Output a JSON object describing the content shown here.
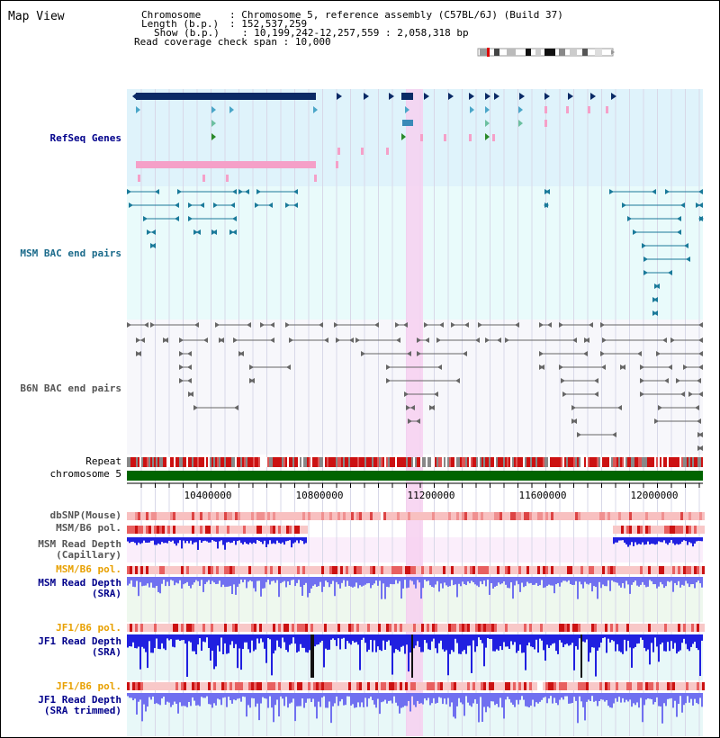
{
  "title": "Map View",
  "info": {
    "chromosome_label": "Chromosome",
    "chromosome_value": "Chromosome 5, reference assembly (C57BL/6J) (Build 37)",
    "length_label": "Length (b.p.)",
    "length_value": "152,537,259",
    "show_label": "Show (b.p.)",
    "show_value": "10,199,242-12,257,559 : 2,058,318 bp",
    "coverage_label": "Read coverage check span",
    "coverage_value": "10,000"
  },
  "tracks": {
    "refseq": "RefSeq Genes",
    "msm_bac": "MSM BAC end pairs",
    "b6n_bac": "B6N BAC end pairs",
    "repeat": "Repeat",
    "chromosome": "chromosome 5",
    "dbsnp": "dbSNP(Mouse)",
    "msm_b6_pol_1": "MSM/B6 pol.",
    "msm_read_depth_cap_1": "MSM Read Depth",
    "msm_read_depth_cap_2": "(Capillary)",
    "msm_b6_pol_2": "MSM/B6 pol.",
    "msm_read_depth_sra_1": "MSM Read Depth",
    "msm_read_depth_sra_2": "(SRA)",
    "jf1_b6_pol_1": "JF1/B6 pol.",
    "jf1_read_depth_sra_1": "JF1 Read Depth",
    "jf1_read_depth_sra_2": "(SRA)",
    "jf1_b6_pol_2": "JF1/B6 pol.",
    "jf1_read_depth_trim_1": "JF1 Read Depth",
    "jf1_read_depth_trim_2": "(SRA trimmed)"
  },
  "ruler": [
    "10400000",
    "10800000",
    "11200000",
    "11600000",
    "12000000"
  ],
  "colors": {
    "refseq_bg": "#dff3fb",
    "msm_bac_bg": "#e9fbfb",
    "b6n_bac_bg": "#f7f7fb",
    "highlight": "#f7d0f0",
    "gene_dark": "#0a2a66",
    "gene_pink": "#f5a0c8",
    "bac_teal": "#1a7a9a",
    "bac_gray": "#666666",
    "chrom_green": "#006400",
    "depth_blue": "#2020e0",
    "depth_light": "#7070f0",
    "label_blue": "#00008b",
    "label_orange": "#e8a000"
  }
}
